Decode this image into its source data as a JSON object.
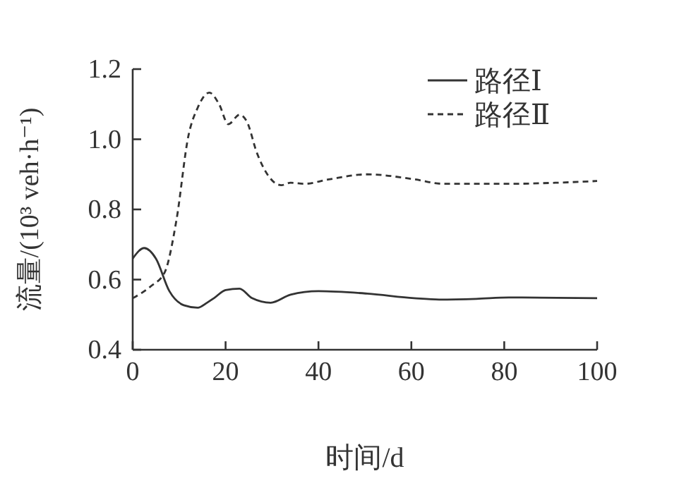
{
  "chart_data": {
    "type": "line",
    "xlabel": "时间/d",
    "ylabel": "流量/(10³ veh·h⁻¹)",
    "xlim": [
      0,
      100
    ],
    "xticks": [
      0,
      20,
      40,
      60,
      80,
      100
    ],
    "ylim": [
      0.4,
      1.2
    ],
    "yticks": [
      0.4,
      0.6,
      0.8,
      {
        "value": 1.0,
        "label": "1.0"
      },
      1.2
    ],
    "legend": "top right",
    "grid": false,
    "marker": "none",
    "series": [
      {
        "name": "路径Ⅰ",
        "color": "#333333",
        "line_style": "solid",
        "x": [
          0,
          2.5,
          5,
          7.9,
          11,
          14,
          16,
          17.5,
          20,
          23,
          25.7,
          29.7,
          34,
          40,
          50.5,
          60.6,
          66,
          74,
          81,
          100
        ],
        "values": [
          0.66,
          0.69,
          0.66,
          0.567,
          0.527,
          0.52,
          0.534,
          0.547,
          0.57,
          0.574,
          0.547,
          0.534,
          0.557,
          0.567,
          0.56,
          0.547,
          0.543,
          0.545,
          0.549,
          0.547
        ]
      },
      {
        "name": "路径Ⅱ",
        "color": "#333333",
        "line_style": "dashed",
        "x": [
          0,
          3.9,
          6.9,
          9.4,
          12,
          14,
          16.5,
          18.6,
          20.6,
          23,
          24.6,
          26.7,
          29.2,
          32,
          34,
          37,
          42,
          50.5,
          60.6,
          67,
          81,
          91,
          100
        ],
        "values": [
          0.547,
          0.581,
          0.621,
          0.768,
          1.01,
          1.09,
          1.133,
          1.1,
          1.043,
          1.07,
          1.05,
          0.963,
          0.896,
          0.869,
          0.876,
          0.873,
          0.885,
          0.9,
          0.886,
          0.873,
          0.873,
          0.876,
          0.881
        ]
      }
    ]
  }
}
